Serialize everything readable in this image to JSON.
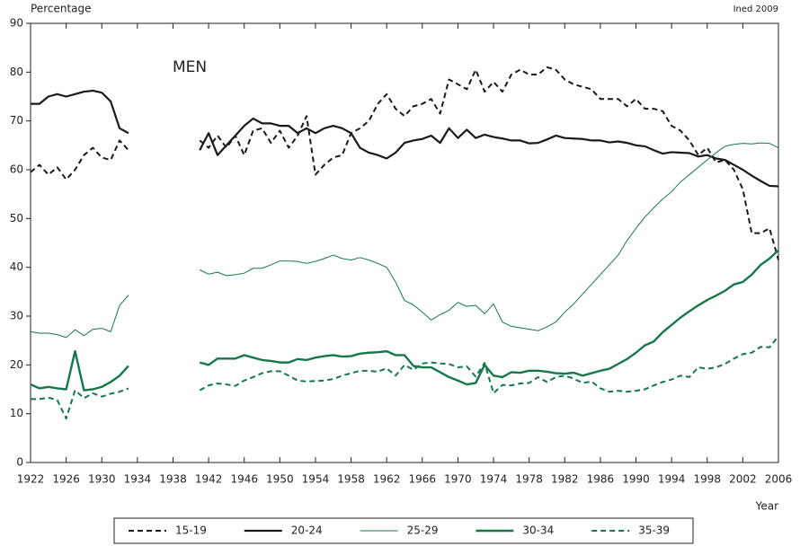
{
  "chart_data": {
    "type": "line",
    "title": "MEN",
    "y_label": "Percentage",
    "x_label": "Year",
    "source": "Ined 2009",
    "x": [
      1922,
      1923,
      1924,
      1925,
      1926,
      1927,
      1928,
      1929,
      1930,
      1931,
      1932,
      1933,
      1934,
      1935,
      1936,
      1937,
      1938,
      1939,
      1940,
      1941,
      1942,
      1943,
      1944,
      1945,
      1946,
      1947,
      1948,
      1949,
      1950,
      1951,
      1952,
      1953,
      1954,
      1955,
      1956,
      1957,
      1958,
      1959,
      1960,
      1961,
      1962,
      1963,
      1964,
      1965,
      1966,
      1967,
      1968,
      1969,
      1970,
      1971,
      1972,
      1973,
      1974,
      1975,
      1976,
      1977,
      1978,
      1979,
      1980,
      1981,
      1982,
      1983,
      1984,
      1985,
      1986,
      1987,
      1988,
      1989,
      1990,
      1991,
      1992,
      1993,
      1994,
      1995,
      1996,
      1997,
      1998,
      1999,
      2000,
      2001,
      2002,
      2003,
      2004,
      2005,
      2006
    ],
    "xlim": [
      1922,
      2006
    ],
    "xticks": [
      1922,
      1926,
      1930,
      1934,
      1938,
      1942,
      1946,
      1950,
      1954,
      1958,
      1962,
      1966,
      1970,
      1974,
      1978,
      1982,
      1986,
      1990,
      1994,
      1998,
      2002,
      2006
    ],
    "ylim": [
      0,
      90
    ],
    "yticks": [
      0,
      10,
      20,
      30,
      40,
      50,
      60,
      70,
      80,
      90
    ],
    "series": [
      {
        "name": "15-19",
        "color": "#1a1a1a",
        "dashed": true,
        "width": 2,
        "values": [
          59.5,
          61,
          59,
          60.5,
          58,
          60,
          63,
          64.5,
          62.5,
          62,
          66,
          64,
          null,
          null,
          null,
          null,
          null,
          null,
          null,
          66,
          64.5,
          67,
          64.5,
          67,
          63,
          68,
          68.5,
          65.5,
          68,
          64.5,
          67,
          71,
          59,
          61,
          62.5,
          63,
          67.5,
          68.5,
          70,
          73.5,
          75.5,
          72.5,
          71,
          73,
          73.5,
          74.5,
          71.5,
          78.5,
          77.5,
          76.5,
          80.5,
          76,
          78,
          76,
          79.5,
          80.5,
          79.5,
          79.5,
          81,
          80.5,
          78.5,
          77.5,
          77,
          76.5,
          74.5,
          74.5,
          74.5,
          73,
          74.5,
          72.5,
          72.5,
          72,
          69,
          68,
          66,
          63,
          64.5,
          61.5,
          62,
          60,
          56,
          47,
          47,
          48,
          41.5
        ]
      },
      {
        "name": "20-24",
        "color": "#1a1a1a",
        "dashed": false,
        "width": 2.2,
        "values": [
          73.5,
          73.5,
          75,
          75.5,
          75,
          75.5,
          76,
          76.2,
          75.8,
          74,
          68.5,
          67.5,
          null,
          null,
          null,
          null,
          null,
          null,
          null,
          64,
          67.5,
          63,
          65,
          67,
          69,
          70.5,
          69.5,
          69.5,
          69,
          69,
          67.5,
          68.5,
          67.5,
          68.5,
          69,
          68.5,
          67.5,
          64.5,
          63.5,
          63,
          62.3,
          63.5,
          65.5,
          66,
          66.3,
          67,
          65.5,
          68.5,
          66.5,
          68.2,
          66.5,
          67.2,
          66.7,
          66.4,
          66,
          66,
          65.4,
          65.5,
          66.2,
          67,
          66.5,
          66.4,
          66.3,
          66,
          66,
          65.6,
          65.8,
          65.5,
          65,
          64.8,
          64,
          63.3,
          63.6,
          63.5,
          63.4,
          62.7,
          63,
          62.3,
          62,
          61,
          60,
          58.8,
          57.7,
          56.7,
          56.6
        ]
      },
      {
        "name": "25-29",
        "color": "#16784a",
        "dashed": false,
        "width": 1,
        "values": [
          26.8,
          26.5,
          26.5,
          26.2,
          25.6,
          27.2,
          26,
          27.3,
          27.5,
          26.8,
          32.2,
          34.3,
          null,
          null,
          null,
          null,
          null,
          null,
          null,
          39.5,
          38.6,
          39,
          38.3,
          38.5,
          38.8,
          39.8,
          39.8,
          40.5,
          41.3,
          41.3,
          41.2,
          40.8,
          41.2,
          41.8,
          42.5,
          41.8,
          41.5,
          42,
          41.5,
          40.8,
          40,
          37,
          33.2,
          32.3,
          30.8,
          29.2,
          30.3,
          31.2,
          32.8,
          32,
          32.2,
          30.5,
          32.5,
          28.8,
          27.9,
          27.6,
          27.3,
          27,
          27.8,
          28.8,
          30.8,
          32.5,
          34.5,
          36.5,
          38.5,
          40.5,
          42.5,
          45.5,
          48,
          50.3,
          52.2,
          54,
          55.5,
          57.5,
          59,
          60.5,
          62,
          63.5,
          64.8,
          65.2,
          65.4,
          65.3,
          65.5,
          65.4,
          64.5
        ]
      },
      {
        "name": "30-34",
        "color": "#16784a",
        "dashed": false,
        "width": 2.4,
        "values": [
          16,
          15.2,
          15.5,
          15.2,
          15,
          22.8,
          14.8,
          15,
          15.5,
          16.5,
          17.8,
          19.8,
          null,
          null,
          null,
          null,
          null,
          null,
          null,
          20.5,
          20,
          21.3,
          21.3,
          21.3,
          22,
          21.5,
          21,
          20.8,
          20.5,
          20.5,
          21.2,
          21,
          21.5,
          21.8,
          22,
          21.7,
          21.8,
          22.3,
          22.5,
          22.6,
          22.8,
          22,
          22,
          19.8,
          19.5,
          19.5,
          18.5,
          17.5,
          16.8,
          16,
          16.3,
          20,
          17.8,
          17.5,
          18.5,
          18.4,
          18.8,
          18.8,
          18.6,
          18.3,
          18.2,
          18.4,
          17.8,
          18.3,
          18.8,
          19.2,
          20.2,
          21.2,
          22.5,
          24,
          24.8,
          26.7,
          28.2,
          29.7,
          31,
          32.2,
          33.3,
          34.2,
          35.2,
          36.5,
          37,
          38.5,
          40.5,
          41.8,
          43.5
        ]
      },
      {
        "name": "35-39",
        "color": "#16784a",
        "dashed": true,
        "width": 2,
        "values": [
          13,
          13,
          13.3,
          12.8,
          9,
          14.8,
          13.2,
          14.2,
          13.5,
          14.1,
          14.5,
          15.2,
          null,
          null,
          null,
          null,
          null,
          null,
          null,
          14.8,
          15.8,
          16.2,
          16,
          15.7,
          16.8,
          17.5,
          18.3,
          18.7,
          18.7,
          17.8,
          16.8,
          16.6,
          16.7,
          16.8,
          17.1,
          17.8,
          18.3,
          18.8,
          18.8,
          18.6,
          19.3,
          17.8,
          20,
          19,
          20.3,
          20.5,
          20.3,
          20.2,
          19.5,
          19.7,
          17.6,
          20.4,
          14.2,
          15.9,
          15.8,
          16.2,
          16.3,
          17.5,
          16.5,
          17.5,
          17.8,
          17.2,
          16.3,
          16.6,
          15.2,
          14.5,
          14.7,
          14.5,
          14.7,
          15,
          15.8,
          16.5,
          17,
          17.8,
          17.5,
          19.5,
          19.2,
          19.5,
          20.2,
          21.3,
          22.2,
          22.5,
          23.7,
          23.6,
          25.9
        ]
      }
    ]
  }
}
